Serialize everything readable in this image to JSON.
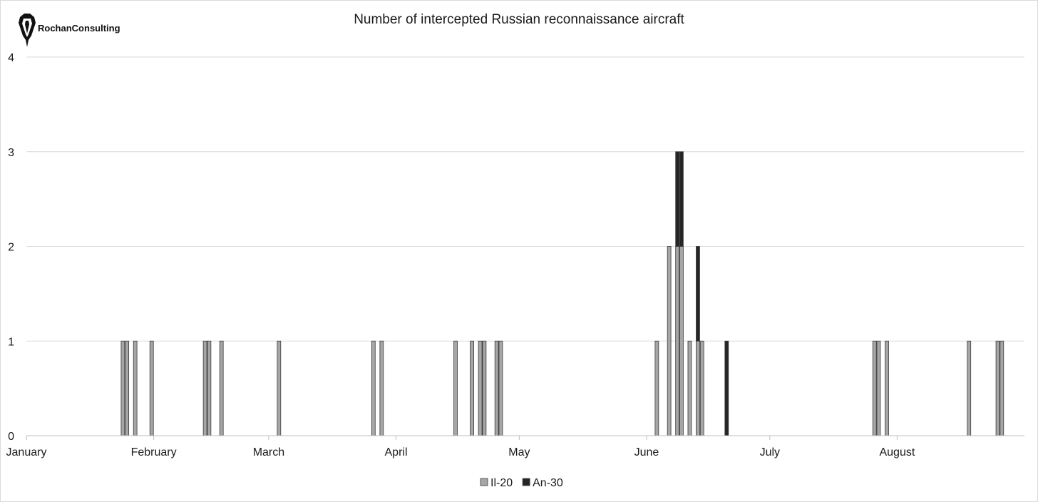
{
  "logo": {
    "text": "RochanConsulting",
    "icon": "fountain-pen-nib-icon"
  },
  "chart_data": {
    "type": "bar",
    "stacked": true,
    "title": "Number of intercepted Russian reconnaissance aircraft",
    "xlabel": "",
    "ylabel": "",
    "x_axis_type": "date",
    "xlim": [
      "January 1",
      "August 31"
    ],
    "x_tick_labels": [
      "January",
      "February",
      "March",
      "April",
      "May",
      "June",
      "July",
      "August"
    ],
    "x_tick_dates": [
      "January 1",
      "February 1",
      "March 1",
      "April 1",
      "May 1",
      "June 1",
      "July 1",
      "August 1"
    ],
    "ylim": [
      0,
      4
    ],
    "y_ticks": [
      0,
      1,
      2,
      3,
      4
    ],
    "grid": true,
    "legend_position": "bottom",
    "colors": {
      "Il-20": "#a6a6a6",
      "An-30": "#262626"
    },
    "series": [
      {
        "name": "Il-20",
        "points": [
          {
            "x": "January 24",
            "y": 1
          },
          {
            "x": "January 25",
            "y": 1
          },
          {
            "x": "January 27",
            "y": 1
          },
          {
            "x": "January 31",
            "y": 1
          },
          {
            "x": "February 13",
            "y": 1
          },
          {
            "x": "February 14",
            "y": 1
          },
          {
            "x": "February 17",
            "y": 1
          },
          {
            "x": "March 3",
            "y": 1
          },
          {
            "x": "March 26",
            "y": 1
          },
          {
            "x": "March 28",
            "y": 1
          },
          {
            "x": "April 15",
            "y": 1
          },
          {
            "x": "April 19",
            "y": 1
          },
          {
            "x": "April 21",
            "y": 1
          },
          {
            "x": "April 22",
            "y": 1
          },
          {
            "x": "April 25",
            "y": 1
          },
          {
            "x": "April 26",
            "y": 1
          },
          {
            "x": "June 3",
            "y": 1
          },
          {
            "x": "June 6",
            "y": 2
          },
          {
            "x": "June 8",
            "y": 2
          },
          {
            "x": "June 9",
            "y": 2
          },
          {
            "x": "June 11",
            "y": 1
          },
          {
            "x": "June 13",
            "y": 1
          },
          {
            "x": "June 14",
            "y": 1
          },
          {
            "x": "July 26",
            "y": 1
          },
          {
            "x": "July 27",
            "y": 1
          },
          {
            "x": "July 29",
            "y": 1
          },
          {
            "x": "August 18",
            "y": 1
          },
          {
            "x": "August 25",
            "y": 1
          },
          {
            "x": "August 26",
            "y": 1
          }
        ]
      },
      {
        "name": "An-30",
        "points": [
          {
            "x": "June 8",
            "y": 1
          },
          {
            "x": "June 9",
            "y": 1
          },
          {
            "x": "June 13",
            "y": 1
          },
          {
            "x": "June 20",
            "y": 1
          }
        ]
      }
    ]
  }
}
